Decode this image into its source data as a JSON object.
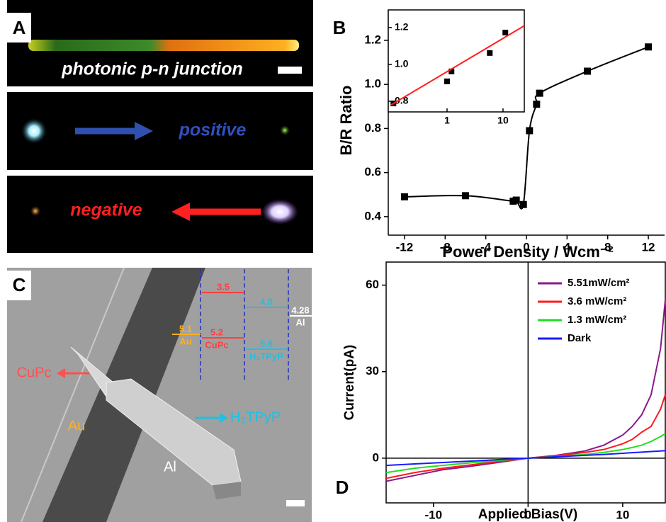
{
  "panels": {
    "a": {
      "label": "A",
      "caption": "photonic p-n junction",
      "forward": "positive",
      "reverse": "negative"
    },
    "b": {
      "label": "B"
    },
    "c": {
      "label": "C",
      "names": {
        "cupc": "CuPc",
        "au": "Au",
        "al": "Al",
        "h2tpyp": "H₂TPyP"
      },
      "levels": [
        [
          "3.5"
        ],
        [
          "4.0"
        ],
        [
          "4.28",
          "Al"
        ],
        [
          "5.1",
          "Au"
        ],
        [
          "5.2",
          "CuPc"
        ],
        [
          "5.8",
          "H₂TPyP"
        ]
      ]
    },
    "d": {
      "label": "D"
    }
  },
  "chart_data": [
    {
      "type": "line",
      "xlabel": "Power Density / Wcm⁻²",
      "ylabel": "B/R Ratio",
      "x": [
        -12,
        -6,
        -1.3,
        -1,
        -0.3,
        0.3,
        1,
        1.3,
        6,
        12
      ],
      "series": [
        {
          "color": "#000000",
          "marker": "square",
          "smooth": true,
          "values": [
            0.49,
            0.495,
            0.47,
            0.475,
            0.455,
            0.79,
            0.91,
            0.96,
            1.06,
            1.17
          ]
        }
      ],
      "xlim": [
        -13.6,
        13.6
      ],
      "xticks": [
        -12,
        -8,
        -4,
        0,
        4,
        8,
        12
      ],
      "ylim": [
        0.316,
        1.338
      ],
      "yticks": [
        0.4,
        0.6,
        0.8,
        {
          "value": 1,
          "label": "1.0"
        },
        1.2
      ]
    },
    {
      "type": "scatter",
      "log_x": true,
      "frame": true,
      "x": [
        0.11,
        1,
        1.2,
        5.8,
        11
      ],
      "series": [
        {
          "color": "#000000",
          "marker": "square",
          "values": [
            0.788,
            0.908,
            0.962,
            1.062,
            1.173
          ]
        },
        {
          "color": "#ff2020",
          "x": [
            0.1,
            24
          ],
          "values": [
            0.78,
            1.21
          ]
        }
      ],
      "xlim": [
        0.089,
        24
      ],
      "xticks": [
        1,
        10
      ],
      "ylim": [
        0.742,
        1.296
      ],
      "yticks": [
        0.8,
        {
          "value": 1,
          "label": "1.0"
        },
        1.2
      ]
    },
    {
      "type": "line",
      "frame": true,
      "zero_lines": true,
      "legend": "upper right",
      "xlabel": "Applied Bias(V)",
      "ylabel": "Current(pA)",
      "x": [
        -15,
        -12,
        -9,
        -6,
        -3,
        0,
        3,
        6,
        8,
        10,
        11,
        12,
        13,
        14,
        14.5
      ],
      "series": [
        {
          "name": "5.51mW/cm²",
          "color": "#8b1a8b",
          "values": [
            -8,
            -6,
            -4,
            -2.8,
            -1.4,
            0,
            1,
            2.5,
            4.5,
            8,
            11,
            15,
            22,
            38,
            55
          ]
        },
        {
          "name": "3.6 mW/cm²",
          "color": "#ff1a1a",
          "values": [
            -7,
            -5,
            -3.5,
            -2.3,
            -1.1,
            0,
            0.8,
            2,
            3,
            5,
            6.5,
            9,
            11,
            17,
            22
          ]
        },
        {
          "name": "1.3 mW/cm²",
          "color": "#22dd22",
          "values": [
            -5,
            -3.5,
            -2.5,
            -1.6,
            -0.8,
            0,
            0.6,
            1.3,
            2,
            3,
            3.7,
            4.5,
            5.8,
            7.5,
            8.5
          ]
        },
        {
          "name": "Dark",
          "color": "#1a1aff",
          "values": [
            -2.5,
            -2,
            -1.5,
            -1,
            -0.5,
            0,
            0.5,
            1,
            1.3,
            1.7,
            1.9,
            2.1,
            2.3,
            2.5,
            2.6
          ]
        }
      ],
      "xlim": [
        -15,
        14.5
      ],
      "xticks": [
        -10,
        0,
        10
      ],
      "ylim": [
        -15.5,
        68
      ],
      "yticks": [
        0,
        30,
        60
      ]
    }
  ]
}
